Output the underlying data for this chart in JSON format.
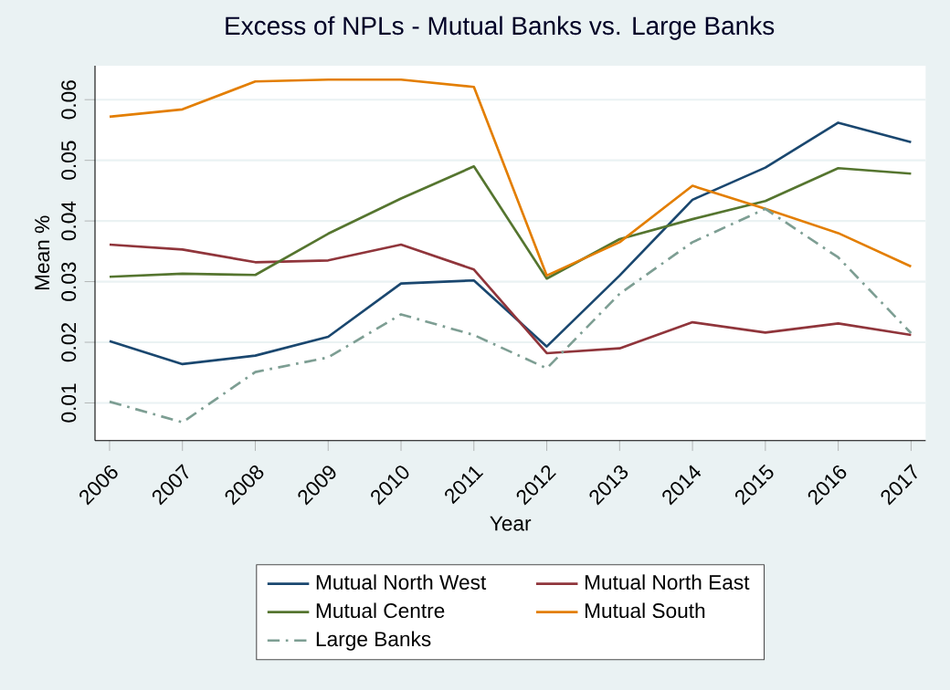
{
  "chart_data": {
    "type": "line",
    "title": "Excess of NPLs - Mutual Banks vs. Large Banks",
    "xlabel": "Year",
    "ylabel": "Mean %",
    "x": [
      2006,
      2007,
      2008,
      2009,
      2010,
      2011,
      2012,
      2013,
      2014,
      2015,
      2016,
      2017
    ],
    "xlim": [
      2005.8,
      2017.2
    ],
    "ylim": [
      0.0038,
      0.0656
    ],
    "xticks": [
      2006,
      2007,
      2008,
      2009,
      2010,
      2011,
      2012,
      2013,
      2014,
      2015,
      2016,
      2017
    ],
    "yticks": [
      0.01,
      0.02,
      0.03,
      0.04,
      0.05,
      0.06
    ],
    "grid": "y",
    "legend": "bottom",
    "marker": "none",
    "series": [
      {
        "name": "Mutual North West",
        "color": "#1a476f",
        "line_style": "solid",
        "values": [
          0.0202,
          0.0164,
          0.0178,
          0.0209,
          0.0297,
          0.0302,
          0.0193,
          0.031,
          0.0435,
          0.0488,
          0.0562,
          0.053
        ]
      },
      {
        "name": "Mutual North East",
        "color": "#90353b",
        "line_style": "solid",
        "values": [
          0.0361,
          0.0353,
          0.0332,
          0.0335,
          0.0361,
          0.032,
          0.0182,
          0.019,
          0.0233,
          0.0216,
          0.0231,
          0.0212
        ]
      },
      {
        "name": "Mutual Centre",
        "color": "#55752f",
        "line_style": "solid",
        "values": [
          0.0308,
          0.0313,
          0.0311,
          0.0379,
          0.0437,
          0.049,
          0.0305,
          0.037,
          0.0403,
          0.0433,
          0.0487,
          0.0478
        ]
      },
      {
        "name": "Mutual South",
        "color": "#e37e00",
        "line_style": "solid",
        "values": [
          0.0572,
          0.0584,
          0.063,
          0.0633,
          0.0633,
          0.0621,
          0.031,
          0.0365,
          0.0458,
          0.042,
          0.038,
          0.0325
        ]
      },
      {
        "name": "Large Banks",
        "color": "#7d9e93",
        "line_style": "dashed",
        "values": [
          0.0102,
          0.0068,
          0.0151,
          0.0175,
          0.0246,
          0.0212,
          0.0157,
          0.028,
          0.0365,
          0.042,
          0.034,
          0.0215
        ]
      }
    ]
  }
}
